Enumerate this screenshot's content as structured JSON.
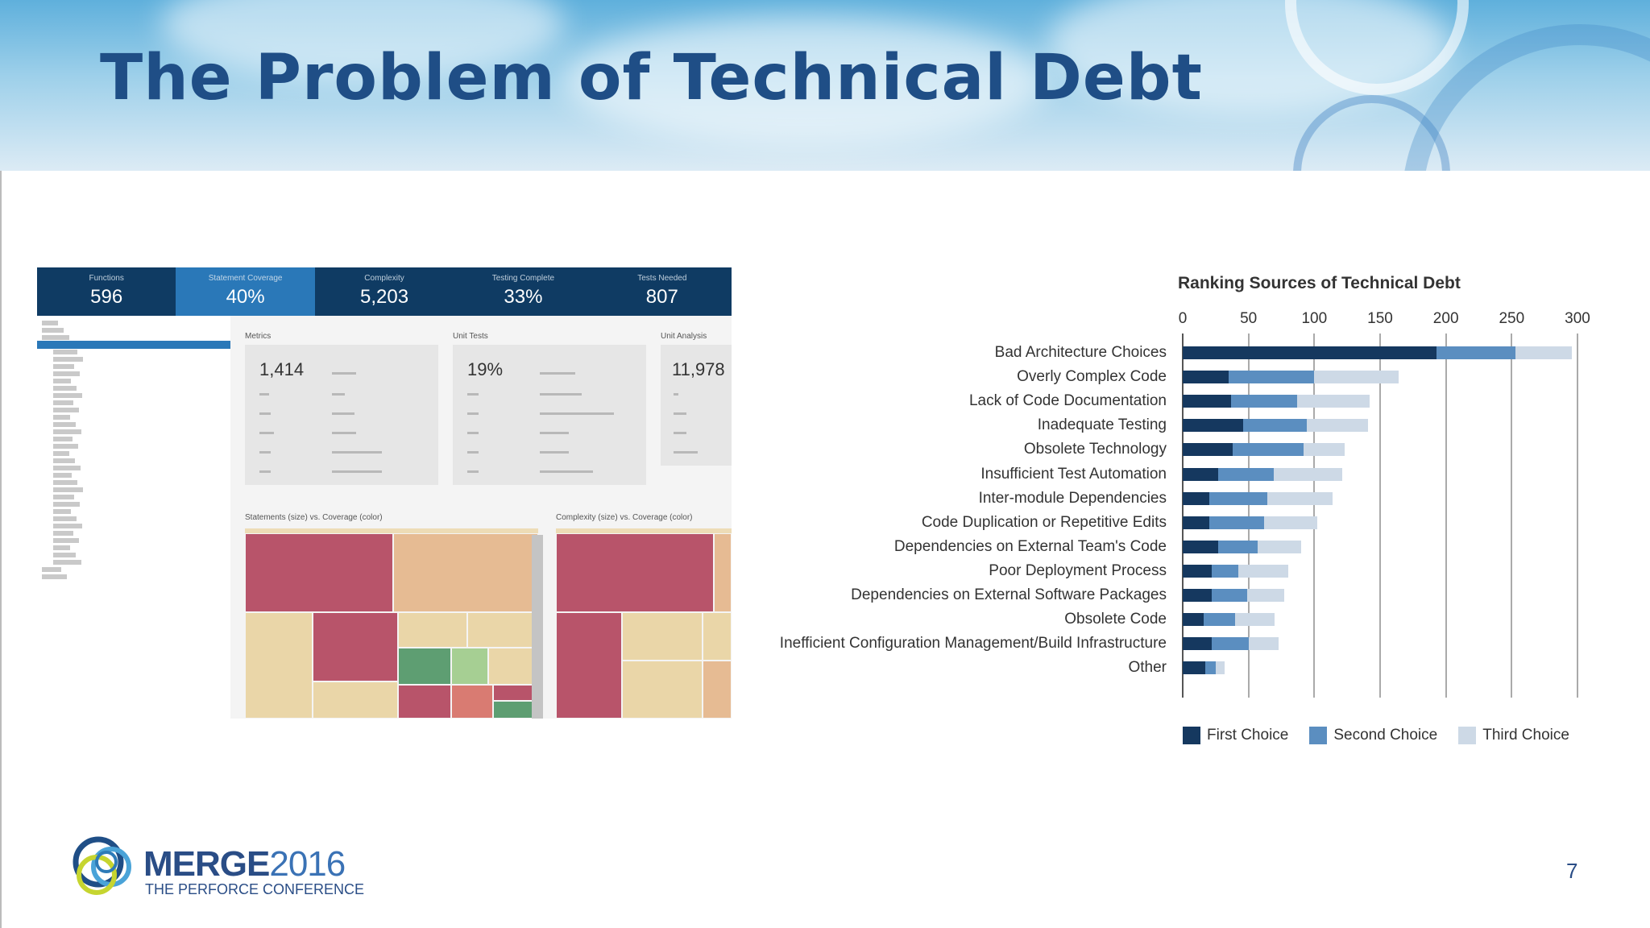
{
  "slide": {
    "title": "The Problem of Technical Debt",
    "page_number": "7"
  },
  "colors": {
    "first_choice": "#15385f",
    "second_choice": "#5b8ec0",
    "third_choice": "#cdd9e6",
    "title": "#1f4e86"
  },
  "dashboard": {
    "kpis": [
      {
        "label": "Functions",
        "value": "596"
      },
      {
        "label": "Statement Coverage",
        "value": "40%"
      },
      {
        "label": "Complexity",
        "value": "5,203"
      },
      {
        "label": "Testing Complete",
        "value": "33%"
      },
      {
        "label": "Tests Needed",
        "value": "807"
      }
    ],
    "panels": {
      "metrics": {
        "title": "Metrics",
        "big_value": "1,414"
      },
      "unit_tests": {
        "title": "Unit Tests",
        "big_value": "19%"
      },
      "unit_analysis": {
        "title": "Unit Analysis",
        "big_value": "11,978"
      }
    },
    "treemap_titles": [
      "Statements (size) vs. Coverage (color)",
      "Complexity (size) vs. Coverage (color)"
    ]
  },
  "chart_data": {
    "type": "bar",
    "stacked": true,
    "orientation": "horizontal",
    "title": "Ranking Sources of Technical Debt",
    "categories": [
      "Bad Architecture Choices",
      "Overly Complex Code",
      "Lack of Code Documentation",
      "Inadequate Testing",
      "Obsolete Technology",
      "Insufficient Test Automation",
      "Inter-module Dependencies",
      "Code Duplication or Repetitive Edits",
      "Dependencies on External Team's Code",
      "Poor Deployment Process",
      "Dependencies on External Software Packages",
      "Obsolete Code",
      "Inefficient Configuration Management/Build Infrastructure",
      "Other"
    ],
    "series": [
      {
        "name": "First Choice",
        "values": [
          193,
          35,
          37,
          46,
          38,
          27,
          20,
          20,
          27,
          22,
          22,
          16,
          22,
          17
        ]
      },
      {
        "name": "Second Choice",
        "values": [
          60,
          65,
          50,
          48,
          54,
          42,
          44,
          42,
          30,
          20,
          27,
          24,
          28,
          8
        ]
      },
      {
        "name": "Third Choice",
        "values": [
          43,
          64,
          55,
          47,
          31,
          52,
          50,
          40,
          33,
          38,
          28,
          30,
          23,
          7
        ]
      }
    ],
    "xticks": [
      "0",
      "50",
      "100",
      "150",
      "200",
      "250",
      "300"
    ],
    "xlim": [
      0,
      300
    ],
    "legend_position": "bottom",
    "grid": true
  },
  "logo": {
    "main": "MERGE",
    "year": "2016",
    "subtitle": "THE PERFORCE CONFERENCE"
  }
}
